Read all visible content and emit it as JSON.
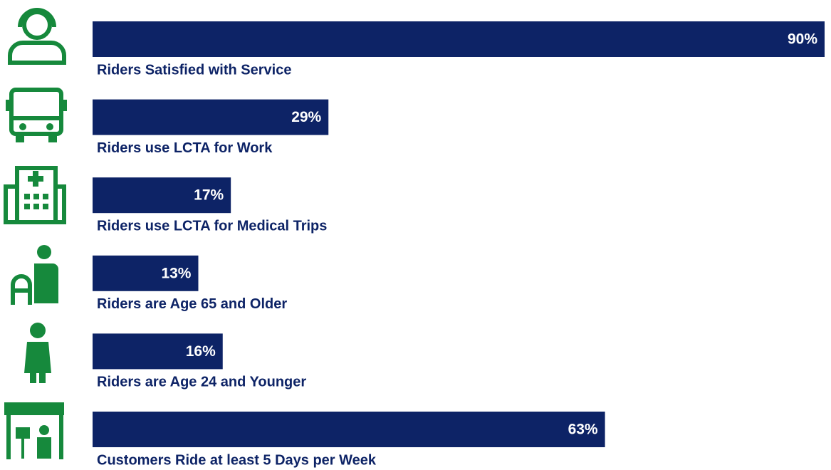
{
  "chart_data": {
    "type": "bar",
    "orientation": "horizontal",
    "categories": [
      "Riders Satisfied with Service",
      "Riders use LCTA for Work",
      "Riders use LCTA for Medical Trips",
      "Riders are Age 65 and Older",
      "Riders are Age 24 and Younger",
      "Customers Ride at least 5 Days per Week"
    ],
    "values": [
      90,
      29,
      17,
      13,
      16,
      63
    ],
    "value_labels": [
      "90%",
      "29%",
      "17%",
      "13%",
      "16%",
      "63%"
    ],
    "color": "#0d2366"
  }
}
